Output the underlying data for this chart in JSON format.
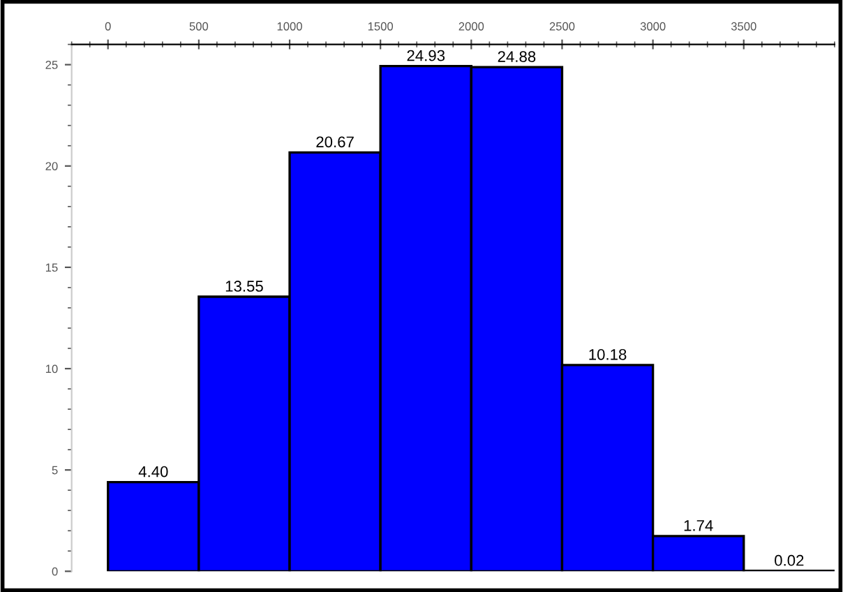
{
  "chart_data": {
    "type": "histogram",
    "bins": [
      0,
      500,
      1000,
      1500,
      2000,
      2500,
      3000,
      3500,
      4000
    ],
    "values": [
      4.4,
      13.55,
      20.67,
      24.93,
      24.88,
      10.18,
      1.74,
      0.02
    ],
    "value_labels": [
      "4.40",
      "13.55",
      "20.67",
      "24.93",
      "24.88",
      "10.18",
      "1.74",
      "0.02"
    ],
    "color": "#0000ff",
    "xlim": [
      -200,
      4000
    ],
    "xticks": [
      0,
      500,
      1000,
      1500,
      2000,
      2500,
      3000,
      3500
    ],
    "ylim": [
      0,
      26
    ],
    "yticks": [
      0,
      5,
      10,
      15,
      20,
      25
    ],
    "grid": false,
    "legend": false
  }
}
